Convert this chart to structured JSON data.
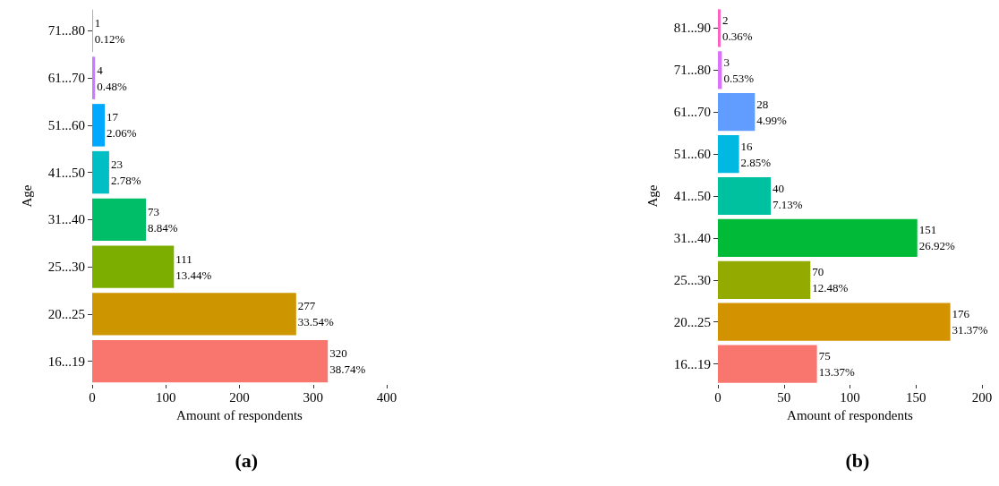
{
  "chart_data": [
    {
      "type": "bar",
      "orientation": "horizontal",
      "title": "(a)",
      "xlabel": "Amount of respondents",
      "ylabel": "Age",
      "categories": [
        "71...80",
        "61...70",
        "51...60",
        "41...50",
        "31...40",
        "25...30",
        "20...25",
        "16...19"
      ],
      "values": [
        1,
        4,
        17,
        23,
        73,
        111,
        277,
        320
      ],
      "colors": [
        "#ff61cc",
        "#c77cff",
        "#00a9ff",
        "#00bfc4",
        "#00be67",
        "#7cae00",
        "#cd9600",
        "#f8766d"
      ],
      "value_labels": [
        "1\n0.12%",
        "4\n0.48%",
        "17\n2.06%",
        "23\n2.78%",
        "73\n8.84%",
        "111\n13.44%",
        "277\n33.54%",
        "320\n38.74%"
      ],
      "xlim": [
        0,
        400
      ],
      "xticks": [
        0,
        100,
        200,
        300,
        400
      ]
    },
    {
      "type": "bar",
      "orientation": "horizontal",
      "title": "(b)",
      "xlabel": "Amount of respondents",
      "ylabel": "Age",
      "categories": [
        "81...90",
        "71...80",
        "61...70",
        "51...60",
        "41...50",
        "31...40",
        "25...30",
        "20...25",
        "16...19"
      ],
      "values": [
        2,
        3,
        28,
        16,
        40,
        151,
        70,
        176,
        75
      ],
      "colors": [
        "#ff61c3",
        "#db72fb",
        "#619cff",
        "#00b9e3",
        "#00c19f",
        "#00ba38",
        "#93aa00",
        "#d39200",
        "#f8766d"
      ],
      "value_labels": [
        "2\n0.36%",
        "3\n0.53%",
        "28\n4.99%",
        "16\n2.85%",
        "40\n7.13%",
        "151\n26.92%",
        "70\n12.48%",
        "176\n31.37%",
        "75\n13.37%"
      ],
      "xlim": [
        0,
        200
      ],
      "xticks": [
        0,
        50,
        100,
        150,
        200
      ]
    }
  ]
}
